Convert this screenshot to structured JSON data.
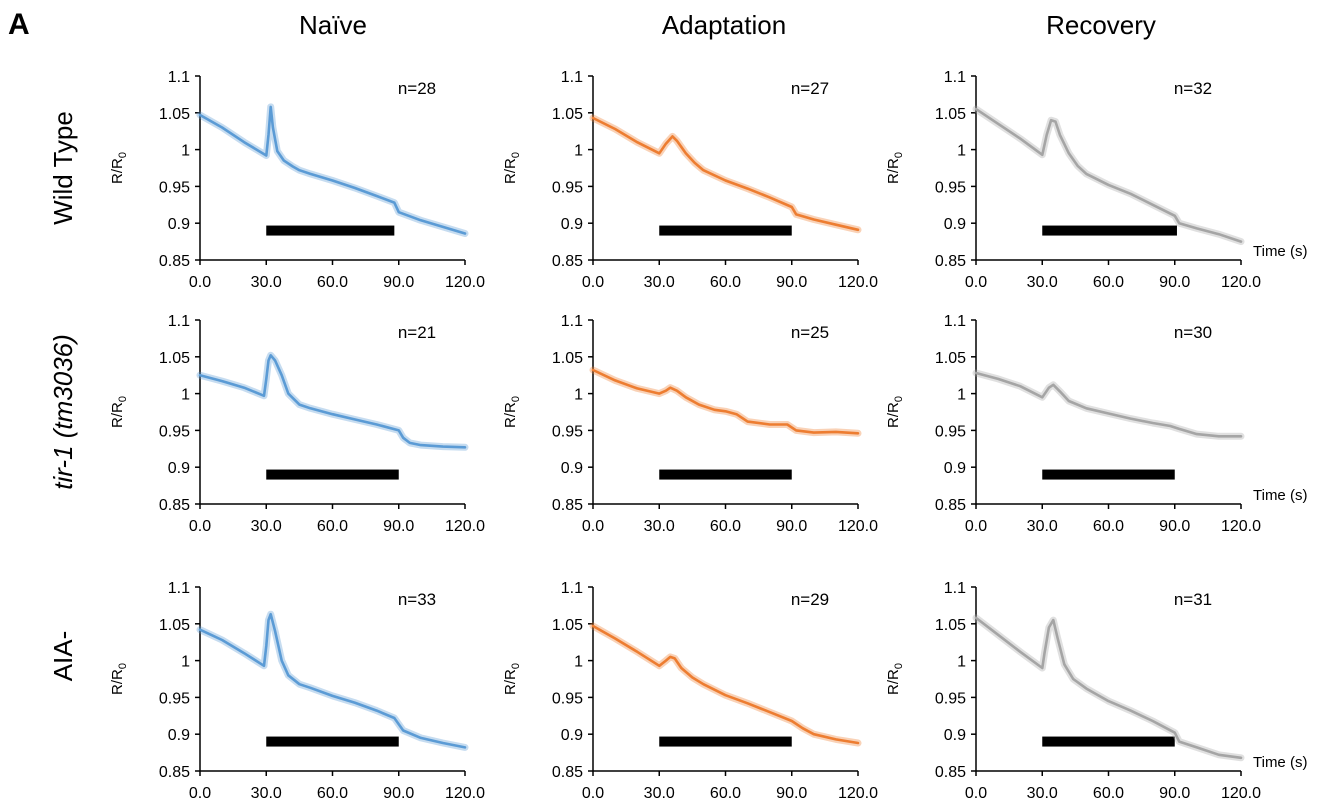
{
  "panel_letter": "A",
  "columns": [
    "Naïve",
    "Adaptation",
    "Recovery"
  ],
  "rows": [
    {
      "label": "Wild Type",
      "italic": false
    },
    {
      "label": "tir-1 (tm3036)",
      "italic": true
    },
    {
      "label": "AIA-",
      "italic": false
    }
  ],
  "ylabel_base": "R/R",
  "ylabel_sub": "0",
  "xlabel": "Time (s)",
  "chart_data": [
    {
      "type": "line",
      "row": 0,
      "col": 0,
      "n": "n=28",
      "color": "#5b9bd5",
      "x": [
        0,
        10,
        20,
        30,
        31,
        32,
        33,
        35,
        38,
        42,
        45,
        50,
        60,
        70,
        80,
        88,
        90,
        100,
        110,
        120
      ],
      "y": [
        1.047,
        1.03,
        1.01,
        0.992,
        1.02,
        1.058,
        1.03,
        0.998,
        0.985,
        0.977,
        0.972,
        0.967,
        0.958,
        0.948,
        0.937,
        0.928,
        0.915,
        0.904,
        0.895,
        0.886
      ],
      "stimulus": [
        30,
        88
      ],
      "ylim": [
        0.85,
        1.1
      ],
      "yticks": [
        "0.85",
        "0.9",
        "0.95",
        "1",
        "1.05",
        "1.1"
      ],
      "xlim": [
        0,
        120
      ],
      "xticks": [
        "0.0",
        "30.0",
        "60.0",
        "90.0",
        "120.0"
      ]
    },
    {
      "type": "line",
      "row": 0,
      "col": 1,
      "n": "n=27",
      "color": "#ed7d31",
      "x": [
        0,
        10,
        20,
        30,
        33,
        36,
        38,
        42,
        46,
        50,
        60,
        70,
        80,
        90,
        92,
        100,
        110,
        120
      ],
      "y": [
        1.043,
        1.028,
        1.01,
        0.995,
        1.008,
        1.018,
        1.012,
        0.995,
        0.982,
        0.972,
        0.958,
        0.947,
        0.935,
        0.922,
        0.912,
        0.905,
        0.898,
        0.891
      ],
      "stimulus": [
        30,
        90
      ],
      "ylim": [
        0.85,
        1.1
      ],
      "yticks": [
        "0.85",
        "0.9",
        "0.95",
        "1",
        "1.05",
        "1.1"
      ],
      "xlim": [
        0,
        120
      ],
      "xticks": [
        "0.0",
        "30.0",
        "60.0",
        "90.0",
        "120.0"
      ]
    },
    {
      "type": "line",
      "row": 0,
      "col": 2,
      "n": "n=32",
      "color": "#a5a5a5",
      "x": [
        0,
        10,
        20,
        30,
        32,
        34,
        36,
        38,
        42,
        46,
        50,
        60,
        70,
        80,
        90,
        92,
        100,
        110,
        120
      ],
      "y": [
        1.055,
        1.035,
        1.015,
        0.993,
        1.02,
        1.04,
        1.038,
        1.02,
        0.995,
        0.978,
        0.967,
        0.952,
        0.94,
        0.925,
        0.91,
        0.9,
        0.893,
        0.885,
        0.875
      ],
      "stimulus": [
        30,
        91
      ],
      "ylim": [
        0.85,
        1.1
      ],
      "yticks": [
        "0.85",
        "0.9",
        "0.95",
        "1",
        "1.05",
        "1.1"
      ],
      "xlim": [
        0,
        120
      ],
      "xticks": [
        "0.0",
        "30.0",
        "60.0",
        "90.0",
        "120.0"
      ]
    },
    {
      "type": "line",
      "row": 1,
      "col": 0,
      "n": "n=21",
      "color": "#5b9bd5",
      "x": [
        0,
        10,
        20,
        29,
        30,
        31,
        32,
        34,
        37,
        40,
        45,
        50,
        60,
        70,
        80,
        90,
        92,
        95,
        100,
        110,
        120
      ],
      "y": [
        1.025,
        1.017,
        1.008,
        0.997,
        1.02,
        1.045,
        1.052,
        1.045,
        1.025,
        1.0,
        0.985,
        0.98,
        0.972,
        0.965,
        0.958,
        0.95,
        0.94,
        0.933,
        0.93,
        0.928,
        0.927
      ],
      "stimulus": [
        30,
        90
      ],
      "ylim": [
        0.85,
        1.1
      ],
      "yticks": [
        "0.85",
        "0.9",
        "0.95",
        "1",
        "1.05",
        "1.1"
      ],
      "xlim": [
        0,
        120
      ],
      "xticks": [
        "0.0",
        "30.0",
        "60.0",
        "90.0",
        "120.0"
      ]
    },
    {
      "type": "line",
      "row": 1,
      "col": 1,
      "n": "n=25",
      "color": "#ed7d31",
      "x": [
        0,
        10,
        20,
        30,
        33,
        35,
        38,
        42,
        48,
        55,
        60,
        65,
        70,
        80,
        88,
        92,
        100,
        110,
        120
      ],
      "y": [
        1.032,
        1.018,
        1.007,
        1.0,
        1.004,
        1.008,
        1.004,
        0.995,
        0.985,
        0.978,
        0.976,
        0.972,
        0.962,
        0.958,
        0.958,
        0.95,
        0.947,
        0.948,
        0.946
      ],
      "stimulus": [
        30,
        90
      ],
      "ylim": [
        0.85,
        1.1
      ],
      "yticks": [
        "0.85",
        "0.9",
        "0.95",
        "1",
        "1.05",
        "1.1"
      ],
      "xlim": [
        0,
        120
      ],
      "xticks": [
        "0.0",
        "30.0",
        "60.0",
        "90.0",
        "120.0"
      ]
    },
    {
      "type": "line",
      "row": 1,
      "col": 2,
      "n": "n=30",
      "color": "#a5a5a5",
      "x": [
        0,
        10,
        20,
        30,
        33,
        35,
        38,
        42,
        50,
        60,
        70,
        80,
        88,
        92,
        100,
        110,
        120
      ],
      "y": [
        1.028,
        1.02,
        1.01,
        0.995,
        1.008,
        1.012,
        1.003,
        0.99,
        0.98,
        0.973,
        0.966,
        0.96,
        0.956,
        0.952,
        0.945,
        0.942,
        0.942
      ],
      "stimulus": [
        30,
        90
      ],
      "ylim": [
        0.85,
        1.1
      ],
      "yticks": [
        "0.85",
        "0.9",
        "0.95",
        "1",
        "1.05",
        "1.1"
      ],
      "xlim": [
        0,
        120
      ],
      "xticks": [
        "0.0",
        "30.0",
        "60.0",
        "90.0",
        "120.0"
      ]
    },
    {
      "type": "line",
      "row": 2,
      "col": 0,
      "n": "n=33",
      "color": "#5b9bd5",
      "x": [
        0,
        10,
        20,
        29,
        30,
        31,
        32,
        34,
        37,
        40,
        45,
        50,
        60,
        70,
        80,
        88,
        92,
        100,
        110,
        120
      ],
      "y": [
        1.042,
        1.028,
        1.01,
        0.993,
        1.02,
        1.055,
        1.063,
        1.04,
        1.0,
        0.98,
        0.968,
        0.963,
        0.952,
        0.943,
        0.932,
        0.922,
        0.905,
        0.895,
        0.888,
        0.882
      ],
      "stimulus": [
        30,
        90
      ],
      "ylim": [
        0.85,
        1.1
      ],
      "yticks": [
        "0.85",
        "0.9",
        "0.95",
        "1",
        "1.05",
        "1.1"
      ],
      "xlim": [
        0,
        120
      ],
      "xticks": [
        "0.0",
        "30.0",
        "60.0",
        "90.0",
        "120.0"
      ]
    },
    {
      "type": "line",
      "row": 2,
      "col": 1,
      "n": "n=29",
      "color": "#ed7d31",
      "x": [
        0,
        10,
        20,
        30,
        33,
        35,
        37,
        40,
        45,
        50,
        60,
        70,
        80,
        90,
        95,
        100,
        110,
        120
      ],
      "y": [
        1.047,
        1.03,
        1.012,
        0.993,
        1.0,
        1.005,
        1.003,
        0.99,
        0.977,
        0.968,
        0.953,
        0.942,
        0.93,
        0.918,
        0.908,
        0.9,
        0.893,
        0.888
      ],
      "stimulus": [
        30,
        90
      ],
      "ylim": [
        0.85,
        1.1
      ],
      "yticks": [
        "0.85",
        "0.9",
        "0.95",
        "1",
        "1.05",
        "1.1"
      ],
      "xlim": [
        0,
        120
      ],
      "xticks": [
        "0.0",
        "30.0",
        "60.0",
        "90.0",
        "120.0"
      ]
    },
    {
      "type": "line",
      "row": 2,
      "col": 2,
      "n": "n=31",
      "color": "#a5a5a5",
      "x": [
        0,
        10,
        20,
        30,
        31,
        33,
        35,
        37,
        40,
        44,
        50,
        60,
        70,
        80,
        90,
        92,
        100,
        110,
        120
      ],
      "y": [
        1.058,
        1.035,
        1.012,
        0.99,
        1.01,
        1.045,
        1.055,
        1.03,
        0.995,
        0.975,
        0.962,
        0.945,
        0.932,
        0.918,
        0.902,
        0.89,
        0.882,
        0.872,
        0.868
      ],
      "stimulus": [
        30,
        90
      ],
      "ylim": [
        0.85,
        1.1
      ],
      "yticks": [
        "0.85",
        "0.9",
        "0.95",
        "1",
        "1.05",
        "1.1"
      ],
      "xlim": [
        0,
        120
      ],
      "xticks": [
        "0.0",
        "30.0",
        "60.0",
        "90.0",
        "120.0"
      ]
    }
  ]
}
